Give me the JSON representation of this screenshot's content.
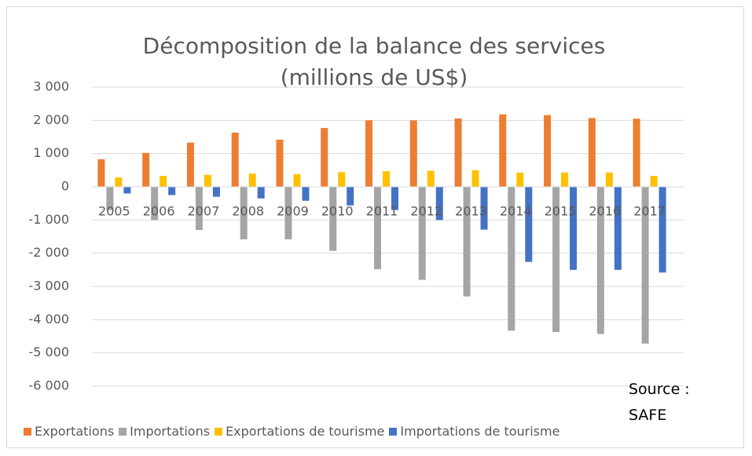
{
  "chart_data": {
    "type": "bar",
    "title": "Décomposition de la balance des services",
    "subtitle": "(millions de US$)",
    "annotation": "Source : SAFE",
    "categories": [
      "2005",
      "2006",
      "2007",
      "2008",
      "2009",
      "2010",
      "2011",
      "2012",
      "2013",
      "2014",
      "2015",
      "2016",
      "2017"
    ],
    "series": [
      {
        "name": "Exportations",
        "color": "#ED7D31",
        "values": [
          830,
          1020,
          1330,
          1630,
          1420,
          1770,
          2000,
          2000,
          2060,
          2180,
          2160,
          2070,
          2050
        ]
      },
      {
        "name": "Importations",
        "color": "#A5A5A5",
        "values": [
          -700,
          -1000,
          -1300,
          -1580,
          -1580,
          -1930,
          -2480,
          -2800,
          -3300,
          -4330,
          -4370,
          -4430,
          -4720
        ]
      },
      {
        "name": "Exportations de tourisme",
        "color": "#FFC000",
        "values": [
          280,
          330,
          360,
          400,
          380,
          440,
          470,
          480,
          500,
          430,
          430,
          430,
          330
        ]
      },
      {
        "name": "Importations de tourisme",
        "color": "#4472C4",
        "values": [
          -200,
          -250,
          -300,
          -350,
          -420,
          -560,
          -700,
          -1000,
          -1290,
          -2260,
          -2500,
          -2500,
          -2580
        ]
      }
    ],
    "ylim": [
      -6000,
      3000
    ],
    "yticks": [
      {
        "value": 3000,
        "label": "3 000"
      },
      {
        "value": 2000,
        "label": "2 000"
      },
      {
        "value": 1000,
        "label": "1 000"
      },
      0,
      {
        "value": -1000,
        "label": "-1 000"
      },
      {
        "value": -2000,
        "label": "-2 000"
      },
      {
        "value": -3000,
        "label": "-3 000"
      },
      {
        "value": -4000,
        "label": "-4 000"
      },
      {
        "value": -5000,
        "label": "-5 000"
      },
      {
        "value": -6000,
        "label": "-6 000"
      }
    ],
    "grid": true,
    "legend": "bottom"
  }
}
